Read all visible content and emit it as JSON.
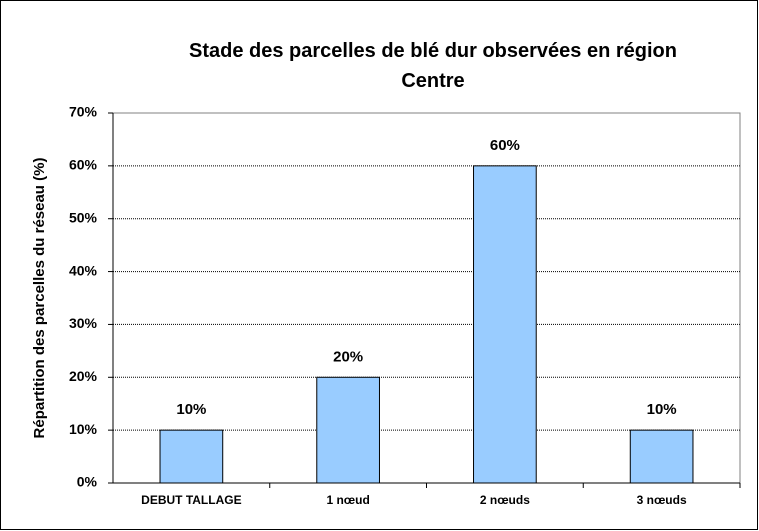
{
  "chart_data": {
    "type": "bar",
    "title": "Stade des parcelles de blé dur observées en région Centre",
    "ylabel": "Répartition des parcelles du réseau (%)",
    "categories": [
      "DEBUT TALLAGE",
      "1 nœud",
      "2 nœuds",
      "3 nœuds"
    ],
    "values": [
      10,
      20,
      60,
      10
    ],
    "value_labels": [
      "10%",
      "20%",
      "60%",
      "10%"
    ],
    "color": "#99ccff",
    "ylim": [
      0,
      70
    ],
    "yticks": [
      {
        "value": 0,
        "label": "0%"
      },
      {
        "value": 10,
        "label": "10%"
      },
      {
        "value": 20,
        "label": "20%"
      },
      {
        "value": 30,
        "label": "30%"
      },
      {
        "value": 40,
        "label": "40%"
      },
      {
        "value": 50,
        "label": "50%"
      },
      {
        "value": 60,
        "label": "60%"
      },
      {
        "value": 70,
        "label": "70%"
      }
    ],
    "grid": true
  }
}
